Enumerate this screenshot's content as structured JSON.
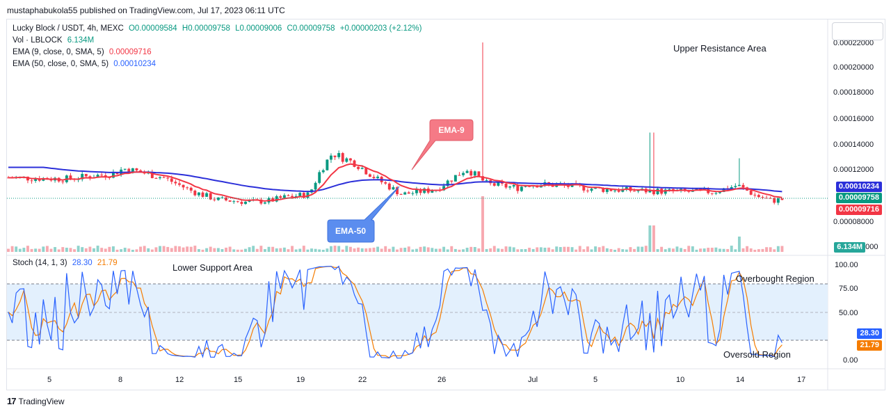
{
  "header": {
    "published": "mustaphabukola55 published on TradingView.com, Jul 17, 2023 06:11 UTC"
  },
  "legend": {
    "symbol": "Lucky Block / USDT, 4h, MEXC",
    "open": "O0.00009584",
    "high": "H0.00009758",
    "low": "L0.00009006",
    "close": "C0.00009758",
    "change": "+0.00000203 (+2.12%)",
    "vol_label": "Vol · LBLOCK",
    "vol_value": "6.134M",
    "ema9_label": "EMA (9, close, 0, SMA, 5)",
    "ema9_value": "0.00009716",
    "ema50_label": "EMA (50, close, 0, SMA, 5)",
    "ema50_value": "0.00010234",
    "stoch_label": "Stoch (14, 1, 3)",
    "stoch_k_value": "28.30",
    "stoch_d_value": "21.79"
  },
  "price_badges": {
    "ema50": "0.00010234",
    "close": "0.00009758",
    "ema9": "0.00009716",
    "volume": "6.134M",
    "stoch_k": "28.30",
    "stoch_d": "21.79"
  },
  "annotations": {
    "upper": "Upper Resistance Area",
    "lower": "Lower Support Area",
    "overbought": "Overbought Region",
    "oversold": "Oversold Region",
    "ema9_callout": "EMA-9",
    "ema50_callout": "EMA-50"
  },
  "price_axis": [
    "0.00022000",
    "0.00020000",
    "0.00018000",
    "0.00016000",
    "0.00014000",
    "0.00012000",
    "0.00008000",
    "0000"
  ],
  "stoch_axis": [
    "100.00",
    "75.00",
    "50.00",
    "25.00",
    "0.00"
  ],
  "time_axis": [
    "5",
    "8",
    "12",
    "15",
    "19",
    "22",
    "26",
    "Jul",
    "5",
    "10",
    "14",
    "17"
  ],
  "footer": {
    "brand": "TradingView",
    "mark": "17"
  },
  "colors": {
    "up": "#089981",
    "down": "#f23645",
    "ema9": "#f23645",
    "ema50": "#2b2fd9",
    "stoch_k": "#2962ff",
    "stoch_d": "#f57c00",
    "stoch_band": "#e3f0fd"
  },
  "chart_data": [
    {
      "type": "candlestick",
      "title": "Lucky Block / USDT, 4h, MEXC",
      "xlabel": "",
      "ylabel": "",
      "ylim": [
        6e-05,
        0.000225
      ],
      "x_ticks": [
        "5",
        "8",
        "12",
        "15",
        "19",
        "22",
        "26",
        "Jul",
        "5",
        "10",
        "14",
        "17"
      ],
      "approx_close_path": [
        [
          0,
          0.000115
        ],
        [
          2.5,
          0.000114
        ],
        [
          4.5,
          0.000118
        ],
        [
          5,
          0.000122
        ],
        [
          6,
          0.000118
        ],
        [
          6.7,
          0.000115
        ],
        [
          8,
          0.000104
        ],
        [
          9,
          9.8e-05
        ],
        [
          10.3,
          9.6e-05
        ],
        [
          11.3,
          9.7e-05
        ],
        [
          12,
          0.0001
        ],
        [
          13,
          0.000102
        ],
        [
          13.5,
          0.000121
        ],
        [
          14,
          0.000134
        ],
        [
          15,
          0.000126
        ],
        [
          16,
          0.000113
        ],
        [
          17,
          0.000102
        ],
        [
          18.5,
          0.000106
        ],
        [
          19.8,
          0.000122
        ],
        [
          20.7,
          0.00011
        ],
        [
          22,
          0.000107
        ],
        [
          22.5,
          0.00011
        ],
        [
          23.8,
          0.000109
        ],
        [
          25.5,
          0.000106
        ],
        [
          27,
          0.000105
        ],
        [
          29,
          0.000104
        ],
        [
          30.5,
          0.000104
        ],
        [
          31.5,
          0.000109
        ],
        [
          32.3,
          0.000101
        ],
        [
          33,
          9.7e-05
        ],
        [
          33.4,
          9.8e-05
        ]
      ],
      "spikes": [
        {
          "x": 20.5,
          "high": 0.00022
        },
        {
          "x": 27.8,
          "high": 0.00015
        },
        {
          "x": 31.6,
          "high": 0.00013
        }
      ],
      "series": [
        {
          "name": "EMA (9, close, 0, SMA, 5)",
          "last": 9.716e-05
        },
        {
          "name": "EMA (50, close, 0, SMA, 5)",
          "last": 0.00010234
        }
      ]
    },
    {
      "type": "line",
      "title": "Stoch (14, 1, 3)",
      "ylim": [
        0,
        100
      ],
      "bands": [
        20,
        80
      ],
      "series": [
        {
          "name": "Stoch (14, 1, 3)",
          "last": 28.3
        },
        {
          "name": "Stoch (14, 1, 3)",
          "last": 21.79
        }
      ]
    }
  ]
}
